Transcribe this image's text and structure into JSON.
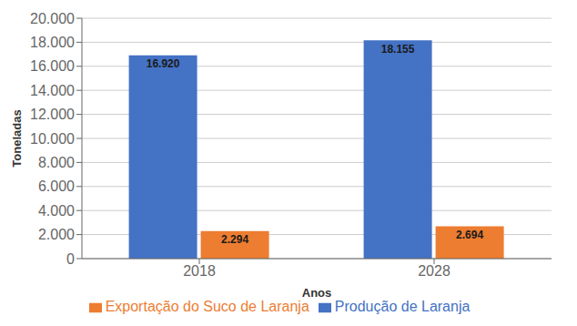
{
  "chart_data": {
    "type": "bar",
    "categories": [
      "2018",
      "2028"
    ],
    "series": [
      {
        "name": "Produção de Laranja",
        "color": "#4472C4",
        "values": [
          16920,
          18155
        ],
        "value_labels": [
          "16.920",
          "18.155"
        ]
      },
      {
        "name": "Exportação do Suco de Laranja",
        "color": "#ED7D31",
        "values": [
          2294,
          2694
        ],
        "value_labels": [
          "2.294",
          "2.694"
        ]
      }
    ],
    "xlabel": "Anos",
    "ylabel": "Toneladas",
    "ylim": [
      0,
      20000
    ],
    "yticks": [
      0,
      {
        "value": 2000,
        "label": "2.000"
      },
      {
        "value": 4000,
        "label": "4.000"
      },
      {
        "value": 6000,
        "label": "6.000"
      },
      {
        "value": 8000,
        "label": "8.000"
      },
      {
        "value": 10000,
        "label": "10.000"
      },
      {
        "value": 12000,
        "label": "12.000"
      },
      {
        "value": 14000,
        "label": "14.000"
      },
      {
        "value": 16000,
        "label": "16.000"
      },
      {
        "value": 18000,
        "label": "18.000"
      },
      {
        "value": 20000,
        "label": "20.000"
      }
    ],
    "grid": true,
    "data_labels": true,
    "legend": "bottom"
  }
}
